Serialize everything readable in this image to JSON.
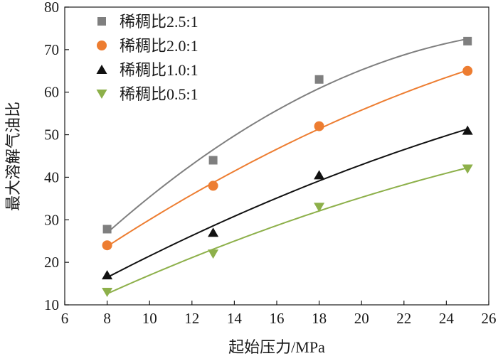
{
  "chart_data": {
    "type": "scatter",
    "title": "",
    "xlabel": "起始压力/MPa",
    "ylabel": "最大溶解气油比",
    "xlim": [
      6,
      26
    ],
    "ylim": [
      10,
      80
    ],
    "xticks": [
      6,
      8,
      10,
      12,
      14,
      16,
      18,
      20,
      22,
      24,
      26
    ],
    "yticks": [
      10,
      20,
      30,
      40,
      50,
      60,
      70,
      80
    ],
    "grid": false,
    "legend_position": "top-left",
    "trendlines": true,
    "series": [
      {
        "name": "稀稠比2.5:1",
        "marker": "square",
        "color": "#7f7f7f",
        "x": [
          8,
          13,
          18,
          25
        ],
        "y": [
          27.8,
          44,
          63,
          72
        ]
      },
      {
        "name": "稀稠比2.0:1",
        "marker": "circle",
        "color": "#ed7d31",
        "x": [
          8,
          13,
          18,
          25
        ],
        "y": [
          24,
          38,
          52,
          65
        ]
      },
      {
        "name": "稀稠比1.0:1",
        "marker": "triangle-up",
        "color": "#111111",
        "x": [
          8,
          13,
          18,
          25
        ],
        "y": [
          17,
          27,
          40.5,
          51
        ]
      },
      {
        "name": "稀稠比0.5:1",
        "marker": "triangle-down",
        "color": "#8db04a",
        "x": [
          8,
          13,
          18,
          25
        ],
        "y": [
          13,
          22,
          33,
          42
        ]
      }
    ]
  }
}
